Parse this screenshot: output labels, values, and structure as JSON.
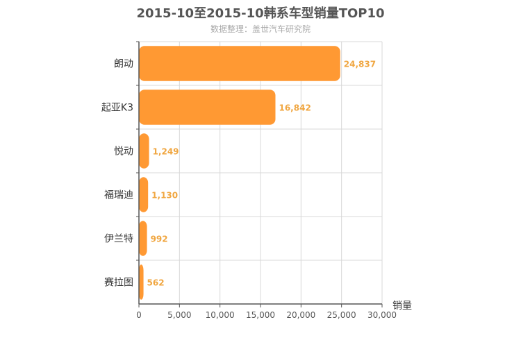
{
  "chart_data": {
    "type": "bar",
    "orientation": "horizontal",
    "title": "2015-10至2015-10韩系车型销量TOP10",
    "subtitle": "数据整理：盖世汽车研究院",
    "categories": [
      "朗动",
      "起亚K3",
      "悦动",
      "福瑞迪",
      "伊兰特",
      "赛拉图"
    ],
    "values": [
      24837,
      16842,
      1249,
      1130,
      992,
      562
    ],
    "value_labels": [
      "24,837",
      "16,842",
      "1,249",
      "1,130",
      "992",
      "562"
    ],
    "value_axis_label": "销量",
    "xlim": [
      0,
      30000
    ],
    "ticks": [
      0,
      5000,
      10000,
      15000,
      20000,
      25000,
      30000
    ],
    "tick_labels": [
      "0",
      "5,000",
      "10,000",
      "15,000",
      "20,000",
      "25,000",
      "30,000"
    ],
    "grid": true,
    "bar_color": "#ff9933",
    "label_color": "#f0a640"
  }
}
